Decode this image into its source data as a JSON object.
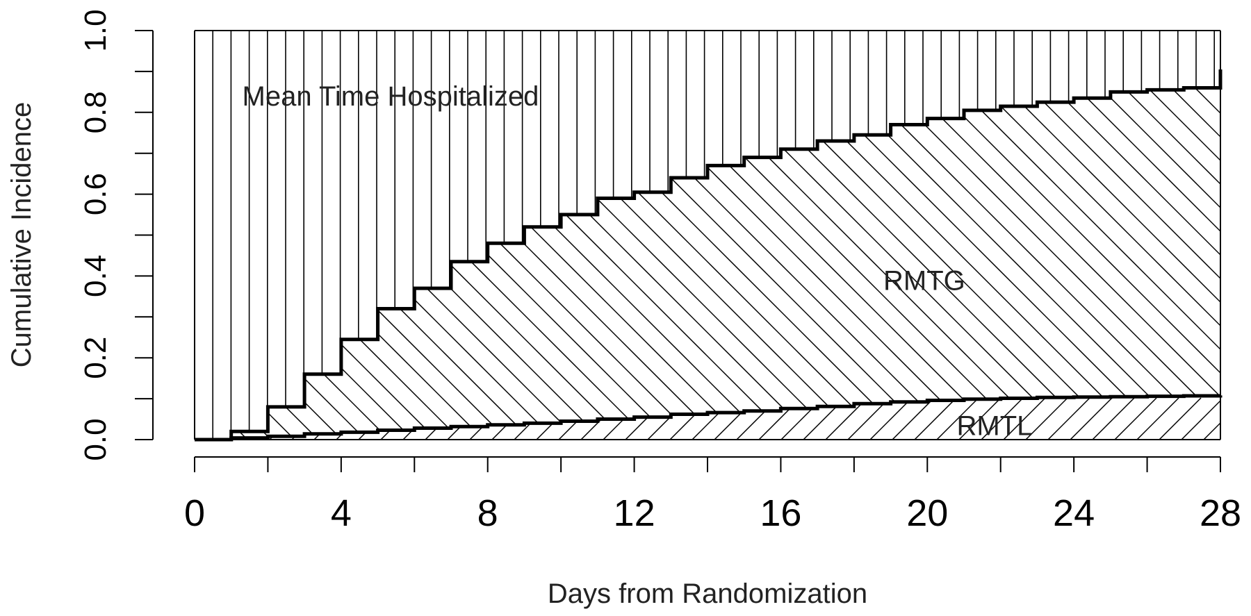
{
  "chart_data": {
    "type": "area",
    "xlabel": "Days from Randomization",
    "ylabel": "Cumulative Incidence",
    "xlim": [
      0,
      28
    ],
    "ylim": [
      0,
      1
    ],
    "x_ticks": [
      0,
      4,
      8,
      12,
      16,
      20,
      24,
      28
    ],
    "y_ticks": [
      0.0,
      0.2,
      0.4,
      0.6,
      0.8,
      1.0
    ],
    "y_tick_labels": [
      "0.0",
      "0.2",
      "0.4",
      "0.6",
      "0.8",
      "1.0"
    ],
    "grid": false,
    "annotations": [
      {
        "text": "Mean Time Hospitalized",
        "x": 1.3,
        "y": 0.84
      },
      {
        "text": "RMTG",
        "x": 18.8,
        "y": 0.39
      },
      {
        "text": "RMTL",
        "x": 20.8,
        "y": 0.035
      }
    ],
    "series": [
      {
        "step": true,
        "x": [
          0,
          1,
          2,
          3,
          4,
          5,
          6,
          7,
          8,
          9,
          10,
          11,
          12,
          13,
          14,
          15,
          16,
          17,
          18,
          19,
          20,
          21,
          22,
          23,
          24,
          25,
          26,
          27,
          28
        ],
        "values": [
          0.0,
          0.02,
          0.08,
          0.16,
          0.245,
          0.32,
          0.37,
          0.435,
          0.48,
          0.52,
          0.55,
          0.59,
          0.605,
          0.64,
          0.67,
          0.69,
          0.71,
          0.73,
          0.745,
          0.77,
          0.785,
          0.805,
          0.815,
          0.825,
          0.835,
          0.85,
          0.855,
          0.86,
          0.905
        ]
      },
      {
        "step": true,
        "x": [
          0,
          1,
          2,
          3,
          4,
          5,
          6,
          7,
          8,
          9,
          10,
          11,
          12,
          13,
          14,
          15,
          16,
          17,
          18,
          19,
          20,
          21,
          22,
          23,
          24,
          25,
          26,
          27,
          28
        ],
        "values": [
          0.0,
          0.004,
          0.008,
          0.014,
          0.018,
          0.023,
          0.028,
          0.032,
          0.036,
          0.04,
          0.045,
          0.05,
          0.055,
          0.062,
          0.066,
          0.07,
          0.076,
          0.081,
          0.088,
          0.092,
          0.096,
          0.099,
          0.101,
          0.103,
          0.104,
          0.105,
          0.106,
          0.107,
          0.108
        ]
      }
    ]
  }
}
